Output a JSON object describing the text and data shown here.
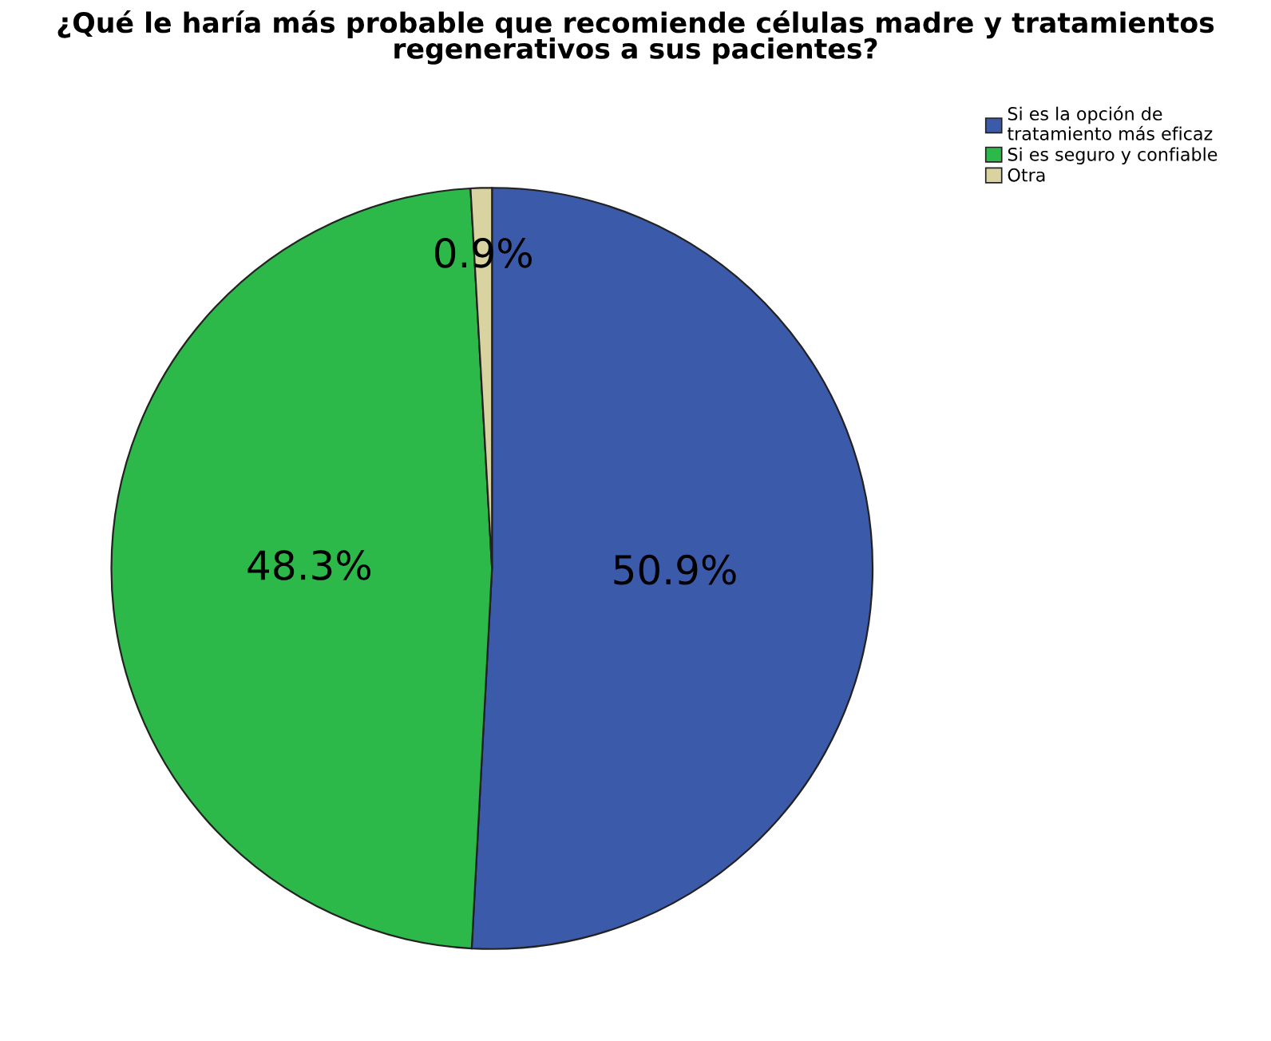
{
  "chart_data": {
    "type": "pie",
    "title": "¿Qué le haría más probable que recomiende células madre y tratamientos\nregenerativos a sus pacientes?",
    "categories": [
      "Si es la opción de\ntratamiento más eficaz",
      "Si es seguro y confiable",
      "Otra"
    ],
    "values": [
      50.9,
      48.3,
      0.9
    ],
    "colors": [
      "#3c5aaa",
      "#2db84a",
      "#d8d3a0"
    ],
    "value_labels": [
      "50.9%",
      "48.3%",
      "0.9%"
    ],
    "legend": "top right"
  }
}
